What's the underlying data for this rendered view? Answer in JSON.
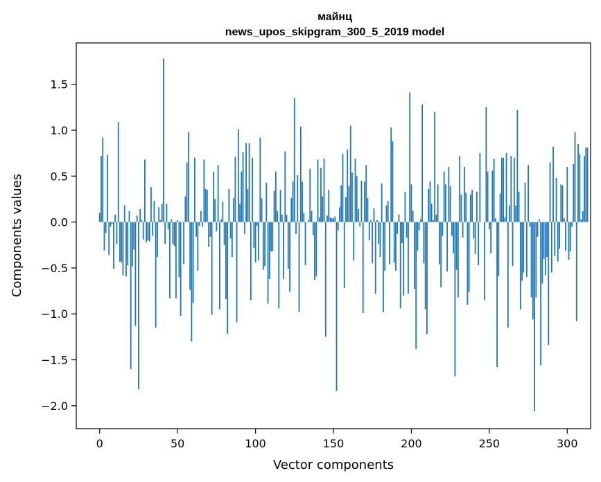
{
  "chart_data": {
    "type": "bar",
    "title_line1": "майнц",
    "title_line2": "news_upos_skipgram_300_5_2019 model",
    "xlabel": "Vector components",
    "ylabel": "Components values",
    "xlim": [
      -15,
      315
    ],
    "ylim": [
      -2.25,
      1.95
    ],
    "xticks": [
      0,
      50,
      100,
      150,
      200,
      250,
      300
    ],
    "yticks": [
      -2.0,
      -1.5,
      -1.0,
      -0.5,
      0.0,
      0.5,
      1.0,
      1.5
    ],
    "xtick_labels": [
      "0",
      "50",
      "100",
      "150",
      "200",
      "250",
      "300"
    ],
    "ytick_labels": [
      "−2.0",
      "−1.5",
      "−1.0",
      "−0.5",
      "0.0",
      "0.5",
      "1.0",
      "1.5"
    ],
    "bar_color": "#1f77b4",
    "grid": false,
    "values": [
      0.1,
      0.72,
      0.92,
      -0.31,
      -0.12,
      0.73,
      -0.36,
      -0.05,
      -0.02,
      -0.51,
      0.08,
      -0.24,
      1.09,
      -0.43,
      -0.44,
      -0.58,
      0.18,
      -0.59,
      -0.47,
      0.12,
      -1.6,
      -0.48,
      -0.3,
      -1.13,
      0.07,
      -1.82,
      0.14,
      0.02,
      -0.19,
      0.68,
      -0.22,
      -0.2,
      -0.21,
      0.38,
      -0.15,
      0.23,
      -1.15,
      -0.38,
      0.16,
      0.02,
      0.2,
      1.78,
      -0.24,
      0.2,
      -0.08,
      -0.83,
      0.03,
      -0.24,
      -0.26,
      -0.83,
      0.02,
      -0.6,
      -1.02,
      0.0,
      -0.46,
      0.28,
      0.65,
      0.98,
      -0.74,
      -1.3,
      -0.88,
      0.7,
      -0.16,
      -0.53,
      -0.04,
      0.12,
      -0.05,
      0.68,
      0.36,
      0.35,
      -0.27,
      -0.16,
      -1.01,
      0.55,
      0.25,
      -0.1,
      0.62,
      -0.95,
      0.03,
      0.22,
      -0.25,
      -0.84,
      -1.22,
      0.36,
      -0.18,
      -0.38,
      0.26,
      0.71,
      -1.09,
      1.01,
      0.2,
      0.55,
      0.76,
      -0.13,
      0.86,
      0.36,
      0.86,
      -0.85,
      0.7,
      -0.28,
      -0.44,
      -0.04,
      -0.42,
      0.92,
      0.26,
      -0.52,
      -0.48,
      0.43,
      -0.89,
      -0.62,
      -0.32,
      -0.32,
      0.34,
      0.55,
      0.12,
      -0.94,
      0.35,
      0.08,
      -0.62,
      0.77,
      0.08,
      -0.51,
      -0.76,
      0.26,
      0.44,
      1.35,
      -0.13,
      0.51,
      -0.98,
      1.04,
      0.44,
      0.1,
      -0.47,
      0.0,
      0.02,
      0.58,
      0.12,
      -0.14,
      -0.63,
      -0.59,
      0.68,
      0.05,
      0.59,
      0.28,
      0.69,
      -1.25,
      0.07,
      0.35,
      0.05,
      0.04,
      0.04,
      0.06,
      -1.84,
      -0.09,
      0.16,
      0.4,
      0.74,
      -0.72,
      0.27,
      0.79,
      0.39,
      1.05,
      0.54,
      -0.42,
      0.69,
      0.5,
      0.14,
      -0.05,
      0.45,
      -0.99,
      0.44,
      0.62,
      0.26,
      -0.2,
      0.02,
      -0.45,
      0.15,
      -0.78,
      0.02,
      -0.24,
      -0.38,
      0.42,
      -0.98,
      -0.53,
      0.18,
      0.23,
      -0.46,
      1.03,
      0.88,
      -0.44,
      -0.53,
      -0.13,
      0.08,
      -0.94,
      -0.23,
      -0.8,
      0.33,
      -0.17,
      -0.78,
      1.41,
      0.41,
      0.12,
      -0.73,
      -1.38,
      -0.31,
      -0.09,
      0.03,
      1.28,
      -0.45,
      -0.95,
      -1.22,
      0.36,
      0.44,
      0.2,
      0.02,
      1.2,
      0.08,
      0.41,
      -0.46,
      -0.71,
      -0.15,
      0.55,
      0.41,
      -0.54,
      0.6,
      0.39,
      -0.15,
      -0.34,
      -1.68,
      -0.52,
      -0.82,
      0.72,
      0.3,
      -0.17,
      0.6,
      0.32,
      -0.9,
      -0.76,
      0.3,
      0.35,
      -0.18,
      -0.35,
      0.33,
      -0.47,
      0.75,
      0.0,
      0.0,
      -0.85,
      1.25,
      0.55,
      -0.08,
      -0.34,
      0.56,
      0.69,
      0.04,
      -1.58,
      -0.59,
      0.31,
      0.7,
      0.7,
      0.05,
      0.75,
      -1.15,
      0.18,
      0.72,
      -0.48,
      0.7,
      0.18,
      1.22,
      0.33,
      -0.95,
      -0.64,
      -0.55,
      0.43,
      -0.6,
      0.62,
      -0.05,
      -0.82,
      -1.06,
      -2.06,
      -0.82,
      -0.16,
      0.03,
      -1.56,
      -0.67,
      -0.4,
      -0.58,
      -0.38,
      -1.34,
      0.65,
      -0.55,
      0.82,
      -0.37,
      0.48,
      -0.43,
      -0.29,
      0.41,
      0.4,
      0.04,
      -0.31,
      0.6,
      -0.41,
      -0.32,
      -0.05,
      0.63,
      0.98,
      -1.08,
      0.85,
      0.74,
      0.03,
      0.12,
      0.72,
      0.81,
      0.81
    ]
  }
}
